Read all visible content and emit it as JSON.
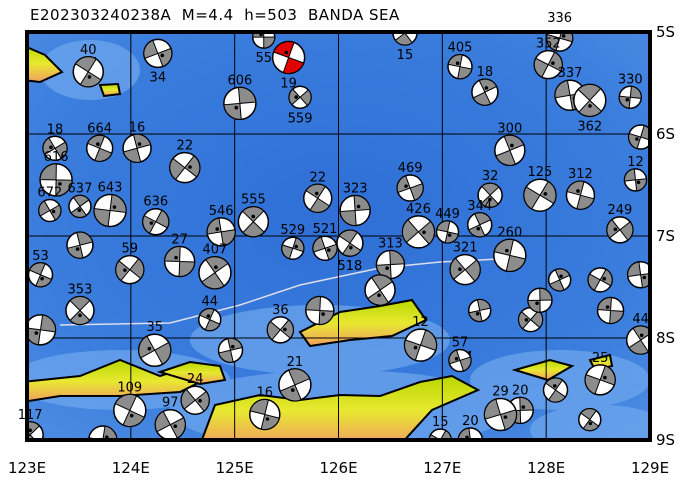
{
  "title": "E202303240238A  M=4.4  h=503  BANDA SEA",
  "map": {
    "region": "BANDA SEA",
    "lon_range": [
      123,
      129
    ],
    "lat_range_south": [
      5,
      9
    ],
    "x_ticks": [
      "123E",
      "124E",
      "125E",
      "126E",
      "127E",
      "128E",
      "129E"
    ],
    "y_ticks": [
      "5S",
      "6S",
      "7S",
      "8S",
      "9S"
    ],
    "colors": {
      "sea_deep": "#2f6fd6",
      "sea_mid": "#3c82e0",
      "sea_shallow": "#6fa8ee",
      "land_low": "#b8d800",
      "land_mid": "#e8e830",
      "land_high": "#f0a060",
      "beachball_fill": "#8c8c8c",
      "main_event": "#e00000"
    },
    "main_event": {
      "lon": 125.52,
      "lat": 5.25,
      "label": "19"
    },
    "events": [
      {
        "lon": 125.28,
        "lat": 5.05,
        "depth": "55"
      },
      {
        "lon": 126.64,
        "lat": 5.01,
        "depth": "15"
      },
      {
        "lon": 128.13,
        "lat": 5.06,
        "depth": "336"
      },
      {
        "lon": 124.26,
        "lat": 5.21,
        "depth": "34"
      },
      {
        "lon": 123.59,
        "lat": 5.39,
        "depth": "40"
      },
      {
        "lon": 125.05,
        "lat": 5.7,
        "depth": "606"
      },
      {
        "lon": 125.63,
        "lat": 5.64,
        "depth": "559"
      },
      {
        "lon": 127.17,
        "lat": 5.34,
        "depth": "405"
      },
      {
        "lon": 127.41,
        "lat": 5.59,
        "depth": "18"
      },
      {
        "lon": 128.02,
        "lat": 5.32,
        "depth": "352"
      },
      {
        "lon": 128.23,
        "lat": 5.62,
        "depth": "337"
      },
      {
        "lon": 128.42,
        "lat": 5.67,
        "depth": "362"
      },
      {
        "lon": 128.81,
        "lat": 5.64,
        "depth": "330"
      },
      {
        "lon": 123.27,
        "lat": 6.14,
        "depth": "18"
      },
      {
        "lon": 123.7,
        "lat": 6.14,
        "depth": "664"
      },
      {
        "lon": 124.06,
        "lat": 6.14,
        "depth": "16"
      },
      {
        "lon": 124.52,
        "lat": 6.33,
        "depth": "22"
      },
      {
        "lon": 123.28,
        "lat": 6.45,
        "depth": "616"
      },
      {
        "lon": 123.51,
        "lat": 6.71,
        "depth": "637"
      },
      {
        "lon": 128.91,
        "lat": 6.03,
        "depth": ""
      },
      {
        "lon": 126.69,
        "lat": 6.53,
        "depth": "469"
      },
      {
        "lon": 125.8,
        "lat": 6.63,
        "depth": "22"
      },
      {
        "lon": 126.16,
        "lat": 6.75,
        "depth": "323"
      },
      {
        "lon": 126.77,
        "lat": 6.96,
        "depth": "426"
      },
      {
        "lon": 127.05,
        "lat": 6.96,
        "depth": "449"
      },
      {
        "lon": 127.36,
        "lat": 6.89,
        "depth": "344"
      },
      {
        "lon": 124.24,
        "lat": 6.86,
        "depth": "636"
      },
      {
        "lon": 124.87,
        "lat": 6.96,
        "depth": "546"
      },
      {
        "lon": 125.18,
        "lat": 6.86,
        "depth": "555"
      },
      {
        "lon": 123.8,
        "lat": 6.75,
        "depth": "643"
      },
      {
        "lon": 123.22,
        "lat": 6.75,
        "depth": "672"
      },
      {
        "lon": 123.13,
        "lat": 7.38,
        "depth": "53"
      },
      {
        "lon": 123.51,
        "lat": 7.09,
        "depth": ""
      },
      {
        "lon": 123.99,
        "lat": 7.33,
        "depth": "59"
      },
      {
        "lon": 124.47,
        "lat": 7.25,
        "depth": "27"
      },
      {
        "lon": 124.81,
        "lat": 7.36,
        "depth": "407"
      },
      {
        "lon": 125.56,
        "lat": 7.12,
        "depth": "529"
      },
      {
        "lon": 125.87,
        "lat": 7.12,
        "depth": "521"
      },
      {
        "lon": 126.11,
        "lat": 7.07,
        "depth": "518"
      },
      {
        "lon": 126.5,
        "lat": 7.28,
        "depth": "313"
      },
      {
        "lon": 127.22,
        "lat": 7.33,
        "depth": "321"
      },
      {
        "lon": 127.65,
        "lat": 7.19,
        "depth": "260"
      },
      {
        "lon": 128.13,
        "lat": 7.43,
        "depth": ""
      },
      {
        "lon": 128.52,
        "lat": 7.43,
        "depth": ""
      },
      {
        "lon": 128.91,
        "lat": 7.38,
        "depth": ""
      },
      {
        "lon": 123.51,
        "lat": 7.73,
        "depth": "353"
      },
      {
        "lon": 123.13,
        "lat": 7.92,
        "depth": ""
      },
      {
        "lon": 124.23,
        "lat": 8.12,
        "depth": "35"
      },
      {
        "lon": 124.76,
        "lat": 7.82,
        "depth": "44"
      },
      {
        "lon": 124.96,
        "lat": 8.12,
        "depth": ""
      },
      {
        "lon": 125.44,
        "lat": 7.92,
        "depth": "36"
      },
      {
        "lon": 125.82,
        "lat": 7.73,
        "depth": ""
      },
      {
        "lon": 126.4,
        "lat": 7.53,
        "depth": ""
      },
      {
        "lon": 126.79,
        "lat": 8.07,
        "depth": "12"
      },
      {
        "lon": 127.17,
        "lat": 8.22,
        "depth": "57"
      },
      {
        "lon": 128.09,
        "lat": 8.51,
        "depth": ""
      },
      {
        "lon": 127.75,
        "lat": 8.71,
        "depth": "20"
      },
      {
        "lon": 124.62,
        "lat": 8.61,
        "depth": "24"
      },
      {
        "lon": 125.29,
        "lat": 8.75,
        "depth": "16"
      },
      {
        "lon": 125.58,
        "lat": 8.46,
        "depth": "21"
      },
      {
        "lon": 126.98,
        "lat": 9.0,
        "depth": "15"
      },
      {
        "lon": 127.27,
        "lat": 9.0,
        "depth": "20"
      },
      {
        "lon": 123.03,
        "lat": 8.95,
        "depth": "117"
      },
      {
        "lon": 123.73,
        "lat": 9.0,
        "depth": ""
      },
      {
        "lon": 124.38,
        "lat": 8.85,
        "depth": "97"
      },
      {
        "lon": 123.99,
        "lat": 8.71,
        "depth": "109"
      },
      {
        "lon": 127.36,
        "lat": 7.73,
        "depth": ""
      },
      {
        "lon": 127.85,
        "lat": 7.82,
        "depth": ""
      },
      {
        "lon": 128.62,
        "lat": 7.73,
        "depth": ""
      },
      {
        "lon": 128.91,
        "lat": 8.02,
        "depth": "44"
      },
      {
        "lon": 128.52,
        "lat": 8.41,
        "depth": "25"
      },
      {
        "lon": 127.56,
        "lat": 8.75,
        "depth": "29"
      },
      {
        "lon": 128.42,
        "lat": 8.8,
        "depth": ""
      },
      {
        "lon": 127.94,
        "lat": 7.63,
        "depth": ""
      },
      {
        "lon": 128.71,
        "lat": 6.94,
        "depth": "249"
      },
      {
        "lon": 128.33,
        "lat": 6.6,
        "depth": "312"
      },
      {
        "lon": 127.65,
        "lat": 6.16,
        "depth": "300"
      },
      {
        "lon": 127.94,
        "lat": 6.6,
        "depth": "125"
      },
      {
        "lon": 128.86,
        "lat": 6.45,
        "depth": "12"
      },
      {
        "lon": 127.46,
        "lat": 6.6,
        "depth": "32"
      }
    ]
  }
}
